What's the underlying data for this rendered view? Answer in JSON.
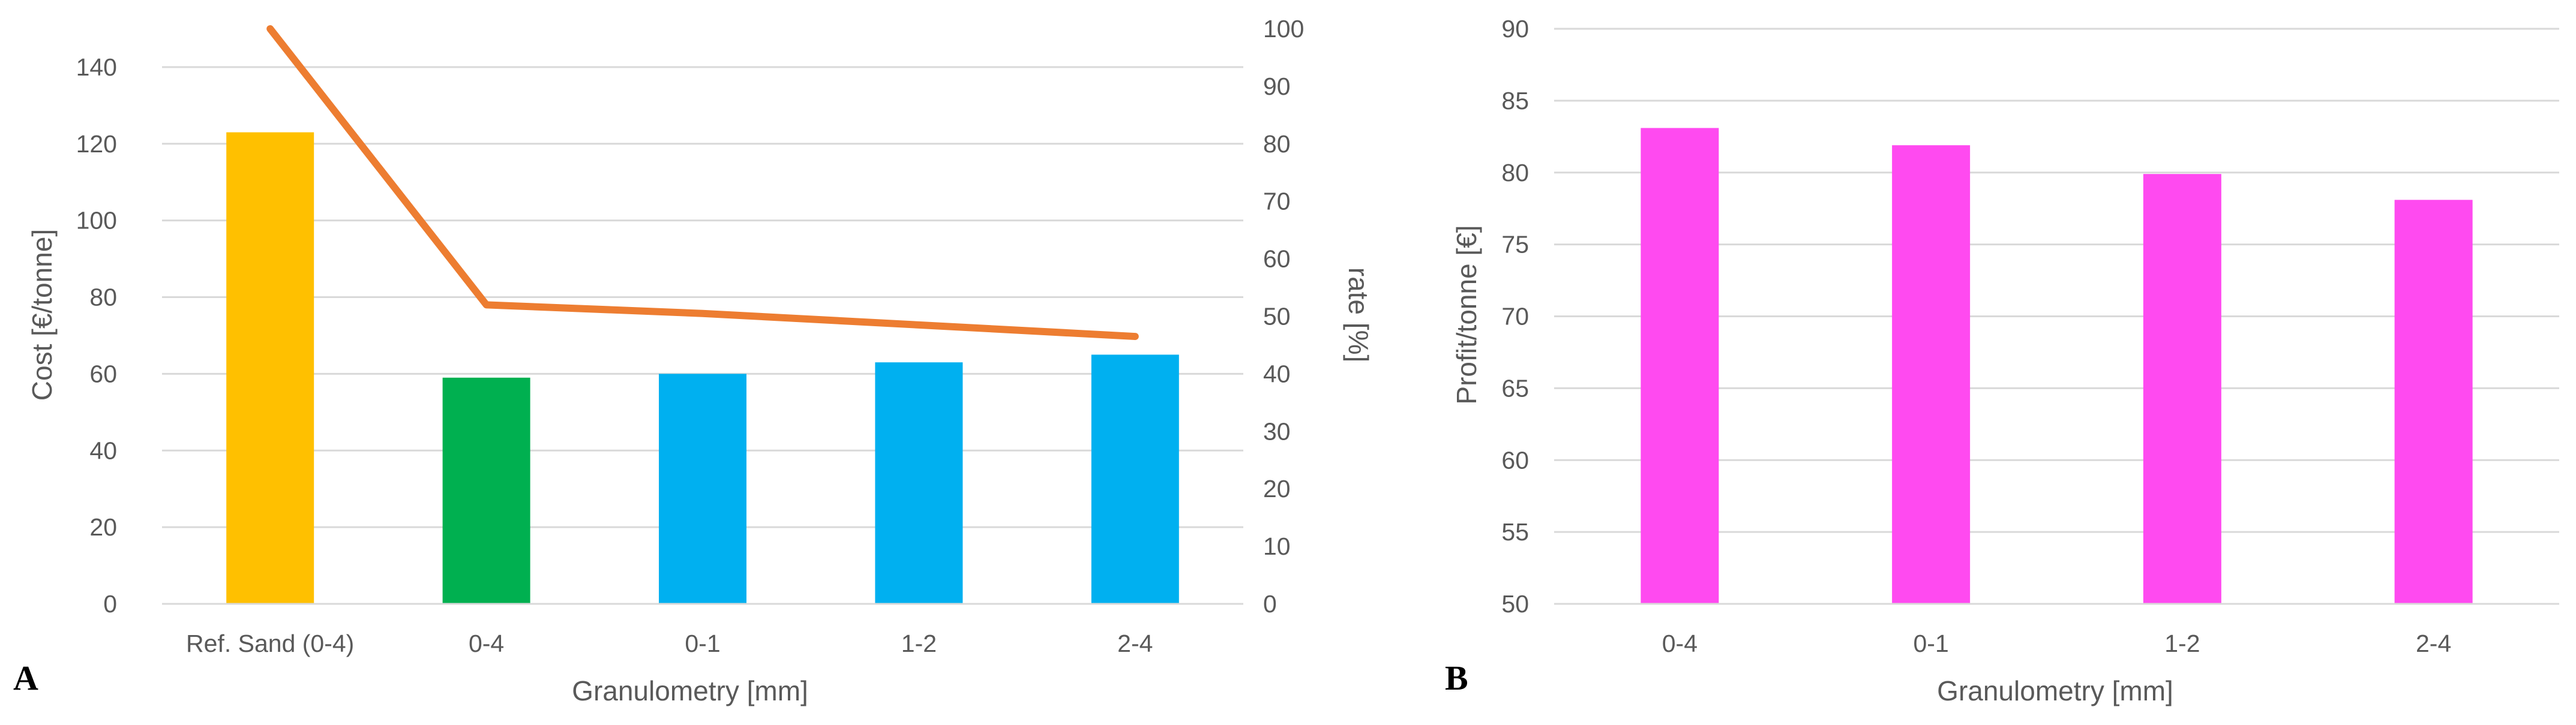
{
  "chart_data": [
    {
      "panel": "A",
      "type": "bar",
      "categories": [
        "Ref. Sand (0-4)",
        "0-4",
        "0-1",
        "1-2",
        "2-4"
      ],
      "series": [
        {
          "name": "Cost",
          "axis": "left",
          "type": "bar",
          "values": [
            123,
            59,
            60,
            63,
            65
          ],
          "colors": [
            "#FFC000",
            "#00B050",
            "#00B0F0",
            "#00B0F0",
            "#00B0F0"
          ]
        },
        {
          "name": "rate",
          "axis": "right",
          "type": "line",
          "values": [
            100,
            52,
            50.5,
            48.5,
            46.5
          ],
          "color": "#ED7D31"
        }
      ],
      "xlabel": "Granulometry [mm]",
      "ylabel": "Cost [€/tonne]",
      "y2label": "rate [%]",
      "ylim": [
        0,
        150
      ],
      "yticks": [
        "0",
        "20",
        "40",
        "60",
        "80",
        "100",
        "120",
        "140"
      ],
      "y2lim": [
        0,
        100
      ],
      "y2ticks": [
        "0",
        "10",
        "20",
        "30",
        "40",
        "50",
        "60",
        "70",
        "80",
        "90",
        "100"
      ],
      "grid": true
    },
    {
      "panel": "B",
      "type": "bar",
      "categories": [
        "0-4",
        "0-1",
        "1-2",
        "2-4"
      ],
      "series": [
        {
          "name": "Profit",
          "axis": "left",
          "type": "bar",
          "values": [
            83.1,
            81.9,
            79.9,
            78.1
          ],
          "colors": [
            "#FF4AF0",
            "#FF4AF0",
            "#FF4AF0",
            "#FF4AF0"
          ]
        }
      ],
      "xlabel": "Granulometry [mm]",
      "ylabel": "Profit/tonne [€]",
      "ylim": [
        50,
        90
      ],
      "yticks": [
        "50",
        "55",
        "60",
        "65",
        "70",
        "75",
        "80",
        "85",
        "90"
      ],
      "grid": true
    }
  ],
  "colors": {
    "grid": "#D9D9D9",
    "text": "#595959"
  }
}
